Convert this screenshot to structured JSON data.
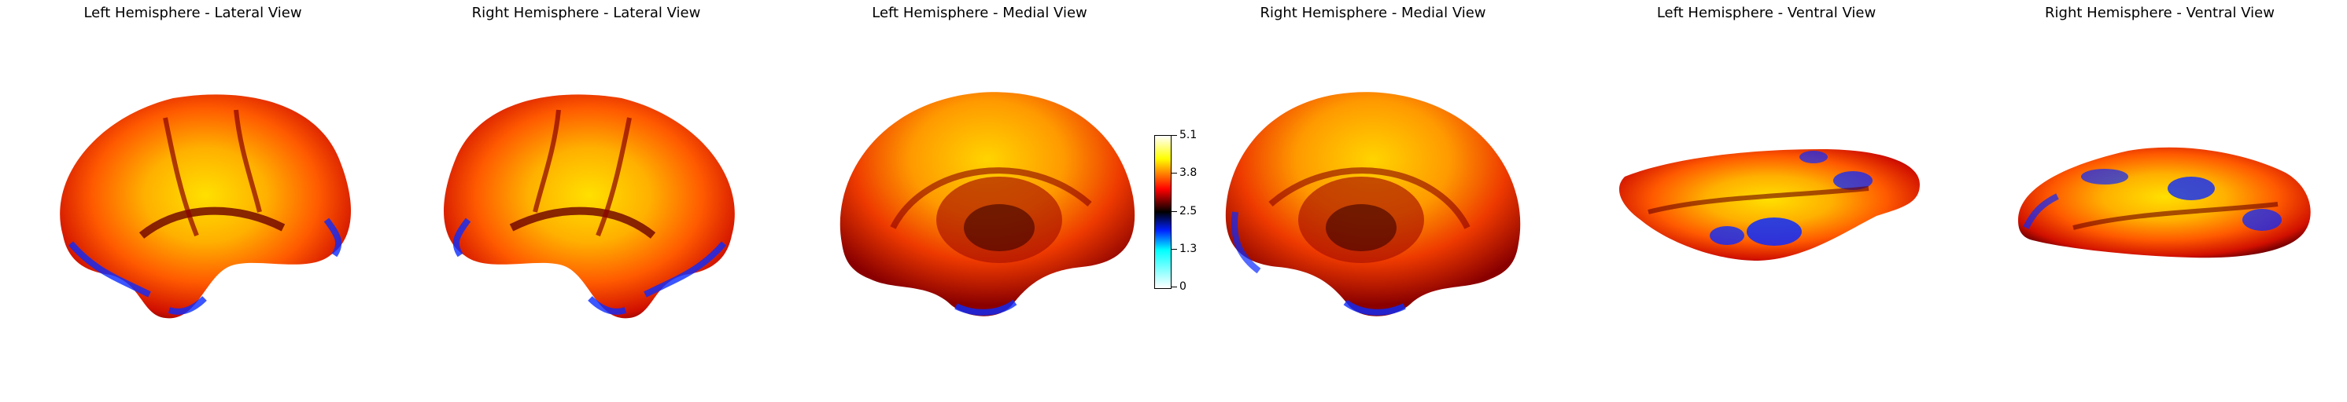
{
  "panels": [
    {
      "title": "Left Hemisphere - Lateral View"
    },
    {
      "title": "Right Hemisphere - Lateral View"
    },
    {
      "title": "Left Hemisphere - Medial View"
    },
    {
      "title": "Right Hemisphere - Medial View"
    },
    {
      "title": "Left Hemisphere - Ventral View"
    },
    {
      "title": "Right Hemisphere - Ventral View"
    }
  ],
  "colorbar": {
    "ticks": [
      "5.1",
      "3.8",
      "2.5",
      "1.3",
      "0"
    ],
    "colors": [
      "#ffffff",
      "#00ffff",
      "#0020ff",
      "#000000",
      "#ff0000",
      "#ffff00",
      "#ffffff"
    ]
  }
}
